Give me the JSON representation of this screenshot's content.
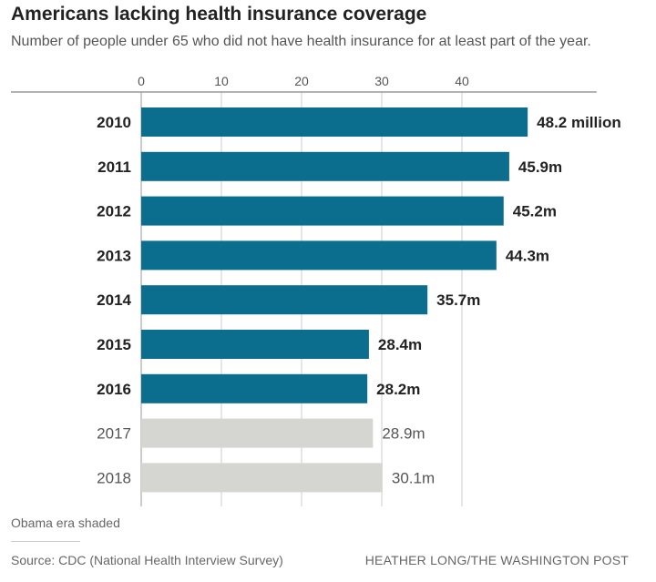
{
  "header": {
    "title": "Americans lacking health insurance coverage",
    "subtitle": "Number of people under 65 who did not have health insurance for at least part of the year."
  },
  "chart_data": {
    "type": "bar",
    "orientation": "horizontal",
    "categories": [
      "2010",
      "2011",
      "2012",
      "2013",
      "2014",
      "2015",
      "2016",
      "2017",
      "2018"
    ],
    "values": [
      48.2,
      45.9,
      45.2,
      44.3,
      35.7,
      28.4,
      28.2,
      28.9,
      30.1
    ],
    "value_labels": [
      "48.2 million",
      "45.9m",
      "45.2m",
      "44.3m",
      "35.7m",
      "28.4m",
      "28.2m",
      "28.9m",
      "30.1m"
    ],
    "highlighted": [
      true,
      true,
      true,
      true,
      true,
      true,
      true,
      false,
      false
    ],
    "xticks": [
      0,
      10,
      20,
      30,
      40
    ],
    "xlim": [
      0,
      56.8
    ],
    "axis_position": "top",
    "grid": true,
    "colors": {
      "highlight": "#0b6e8e",
      "other": "#d5d5d2",
      "grid": "#cccccc"
    }
  },
  "footer": {
    "note": "Obama era shaded",
    "source": "Source: CDC (National Health Interview Survey)",
    "credit": "HEATHER LONG/THE WASHINGTON POST"
  }
}
